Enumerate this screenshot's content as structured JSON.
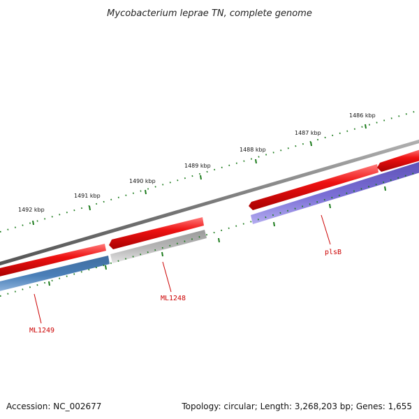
{
  "map": {
    "title": "Mycobacterium leprae TN, complete genome",
    "accession_text": "Accession: NC_002677",
    "summary_text": "Topology: circular; Length: 3,268,203 bp; Genes: 1,655",
    "colors": {
      "backbone": "#808080",
      "ticks": "#1a7a1a",
      "forward_gene": "#ee1111",
      "label_line": "#cc0000",
      "label_text": "#cc0000"
    },
    "scale_labels": [
      "1486 kbp",
      "1487 kbp",
      "1488 kbp",
      "1489 kbp",
      "1490 kbp",
      "1491 kbp",
      "1492 kbp"
    ],
    "forward_genes": [
      {
        "name": "forward-gene-1",
        "color": "#ee1111"
      },
      {
        "name": "forward-gene-2",
        "color": "#ee1111"
      },
      {
        "name": "forward-gene-3",
        "color": "#ee1111"
      },
      {
        "name": "forward-gene-4",
        "color": "#ee1111"
      }
    ],
    "reverse_genes": [
      {
        "label": "ML1249",
        "color": "#4a7fb8"
      },
      {
        "label": "ML1248",
        "color": "#b8b8b8"
      },
      {
        "label": "plsB",
        "color": "#7b6fd6"
      }
    ]
  }
}
